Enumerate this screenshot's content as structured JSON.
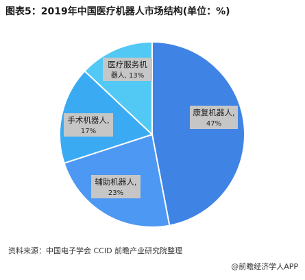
{
  "header": {
    "title": "图表5：2019年中国医疗机器人市场结构(单位：%)"
  },
  "chart_data": {
    "type": "pie",
    "title": "图表5：2019年中国医疗机器人市场结构(单位：%)",
    "start_angle_deg": 0,
    "direction": "clockwise",
    "slices": [
      {
        "label_lines": [
          "康复机器人,",
          "47%"
        ],
        "value": 47,
        "color": "#3f84e5"
      },
      {
        "label_lines": [
          "辅助机器人,",
          "23%"
        ],
        "value": 23,
        "color": "#4d98f2"
      },
      {
        "label_lines": [
          "手术机器人,",
          "17%"
        ],
        "value": 17,
        "color": "#3aaaf3"
      },
      {
        "label_lines": [
          "医疗服务机",
          "器人, 13%"
        ],
        "value": 13,
        "color": "#52c8f5"
      }
    ]
  },
  "footer": {
    "source": "资料来源：中国电子学会 CCID 前瞻产业研究院整理",
    "brand": "@前瞻经济学人APP"
  }
}
